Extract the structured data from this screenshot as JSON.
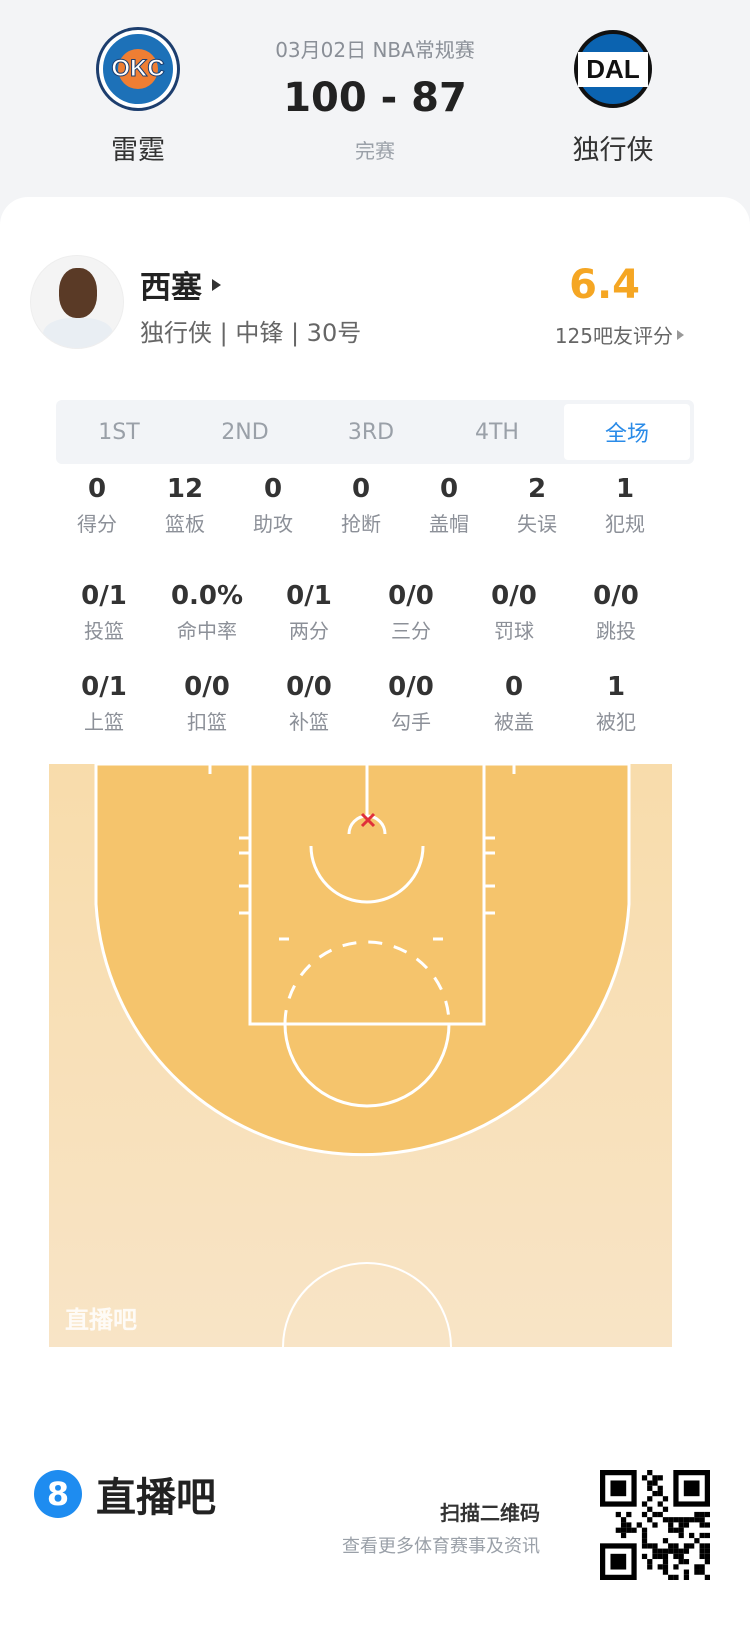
{
  "match": {
    "date_league": "03月02日 NBA常规赛",
    "score": "100 - 87",
    "status": "完赛",
    "home": {
      "name": "雷霆",
      "abbr": "OKC"
    },
    "away": {
      "name": "独行侠",
      "abbr": "DAL"
    }
  },
  "player": {
    "name": "西塞",
    "info": "独行侠 | 中锋 | 30号",
    "rating": "6.4",
    "rating_label": "125吧友评分",
    "rating_color": "#f5a623"
  },
  "tabs": [
    {
      "label": "1ST"
    },
    {
      "label": "2ND"
    },
    {
      "label": "3RD"
    },
    {
      "label": "4TH"
    },
    {
      "label": "全场",
      "active": true
    }
  ],
  "stats_row1": [
    {
      "v": "0",
      "l": "得分"
    },
    {
      "v": "12",
      "l": "篮板"
    },
    {
      "v": "0",
      "l": "助攻"
    },
    {
      "v": "0",
      "l": "抢断"
    },
    {
      "v": "0",
      "l": "盖帽"
    },
    {
      "v": "2",
      "l": "失误"
    },
    {
      "v": "1",
      "l": "犯规"
    }
  ],
  "stats_row2": [
    {
      "v": "0/1",
      "l": "投篮"
    },
    {
      "v": "0.0%",
      "l": "命中率"
    },
    {
      "v": "0/1",
      "l": "两分"
    },
    {
      "v": "0/0",
      "l": "三分"
    },
    {
      "v": "0/0",
      "l": "罚球"
    },
    {
      "v": "0/0",
      "l": "跳投"
    }
  ],
  "stats_row3": [
    {
      "v": "0/1",
      "l": "上篮"
    },
    {
      "v": "0/0",
      "l": "扣篮"
    },
    {
      "v": "0/0",
      "l": "补篮"
    },
    {
      "v": "0/0",
      "l": "勾手"
    },
    {
      "v": "0",
      "l": "被盖"
    },
    {
      "v": "1",
      "l": "被犯"
    }
  ],
  "shot_chart": {
    "watermark": "直播吧",
    "shots": [
      {
        "result": "miss",
        "marker": "x",
        "color": "#e0303a"
      }
    ]
  },
  "footer": {
    "brand": "直播吧",
    "brand_icon": "8",
    "scan_title": "扫描二维码",
    "scan_sub": "查看更多体育赛事及资讯"
  }
}
